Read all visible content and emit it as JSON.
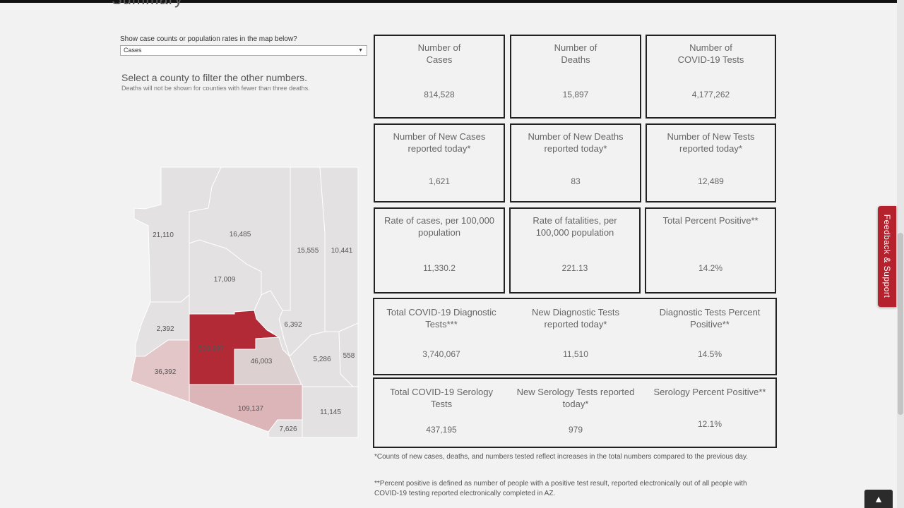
{
  "page": {
    "heading": "Summary"
  },
  "controls": {
    "label": "Show case counts or population rates in the map below?",
    "selected": "Cases",
    "select_prompt": "Select a county to filter the other numbers.",
    "deaths_note": "Deaths will not be shown for counties with fewer than three deaths."
  },
  "map": {
    "colors": {
      "light": "#e3e1e1",
      "pale": "#dcd0d0",
      "medium": "#e2c6c8",
      "rose": "#dcb5b8",
      "dark": "#b22a36"
    },
    "counties": [
      {
        "value": "21,110"
      },
      {
        "value": "16,485"
      },
      {
        "value": "15,555"
      },
      {
        "value": "10,441"
      },
      {
        "value": "17,009"
      },
      {
        "value": "2,392"
      },
      {
        "value": "6,392"
      },
      {
        "value": "508,997"
      },
      {
        "value": "46,003"
      },
      {
        "value": "5,286"
      },
      {
        "value": "558"
      },
      {
        "value": "36,392"
      },
      {
        "value": "109,137"
      },
      {
        "value": "11,145"
      },
      {
        "value": "7,626"
      }
    ]
  },
  "cards": {
    "cases": {
      "title1": "Number of",
      "title2": "Cases",
      "value": "814,528"
    },
    "deaths": {
      "title1": "Number of",
      "title2": "Deaths",
      "value": "15,897"
    },
    "tests": {
      "title1": "Number of",
      "title2": "COVID-19 Tests",
      "value": "4,177,262"
    },
    "new_cases": {
      "title1": "Number of New Cases",
      "title2": "reported today*",
      "value": "1,621"
    },
    "new_deaths": {
      "title1": "Number of New Deaths",
      "title2": "reported today*",
      "value": "83"
    },
    "new_tests": {
      "title1": "Number of New Tests",
      "title2": "reported today*",
      "value": "12,489"
    },
    "case_rate": {
      "title1": "Rate of cases, per 100,000",
      "title2": "population",
      "value": "11,330.2"
    },
    "fatality_rate": {
      "title1": "Rate of fatalities, per",
      "title2": "100,000 population",
      "value": "221.13"
    },
    "percent_positive": {
      "title1": "Total Percent Positive**",
      "title2": "",
      "value": "14.2%"
    }
  },
  "diagnostic": {
    "total": {
      "title1": "Total COVID-19 Diagnostic",
      "title2": "Tests***",
      "value": "3,740,067"
    },
    "new": {
      "title1": "New Diagnostic Tests",
      "title2": "reported today*",
      "value": "11,510"
    },
    "percent": {
      "title1": "Diagnostic Tests Percent",
      "title2": "Positive**",
      "value": "14.5%"
    }
  },
  "serology": {
    "total": {
      "title1": "Total COVID-19 Serology",
      "title2": "Tests",
      "value": "437,195"
    },
    "new": {
      "title1": "New Serology Tests reported",
      "title2": "today*",
      "value": "979"
    },
    "percent": {
      "title1": "Serology Percent Positive**",
      "title2": "",
      "value": "12.1%"
    }
  },
  "footnotes": {
    "new_counts": "*Counts of new cases, deaths, and numbers tested reflect increases in the total numbers compared to the previous day.",
    "percent_positive": "**Percent positive is defined as number of people with a positive test result, reported electronically out of all people with COVID-19 testing reported electronically completed in AZ."
  },
  "feedback": {
    "label": "Feedback & Support"
  },
  "scroll_top": {
    "icon": "chevron-up-icon",
    "glyph": "▲"
  }
}
